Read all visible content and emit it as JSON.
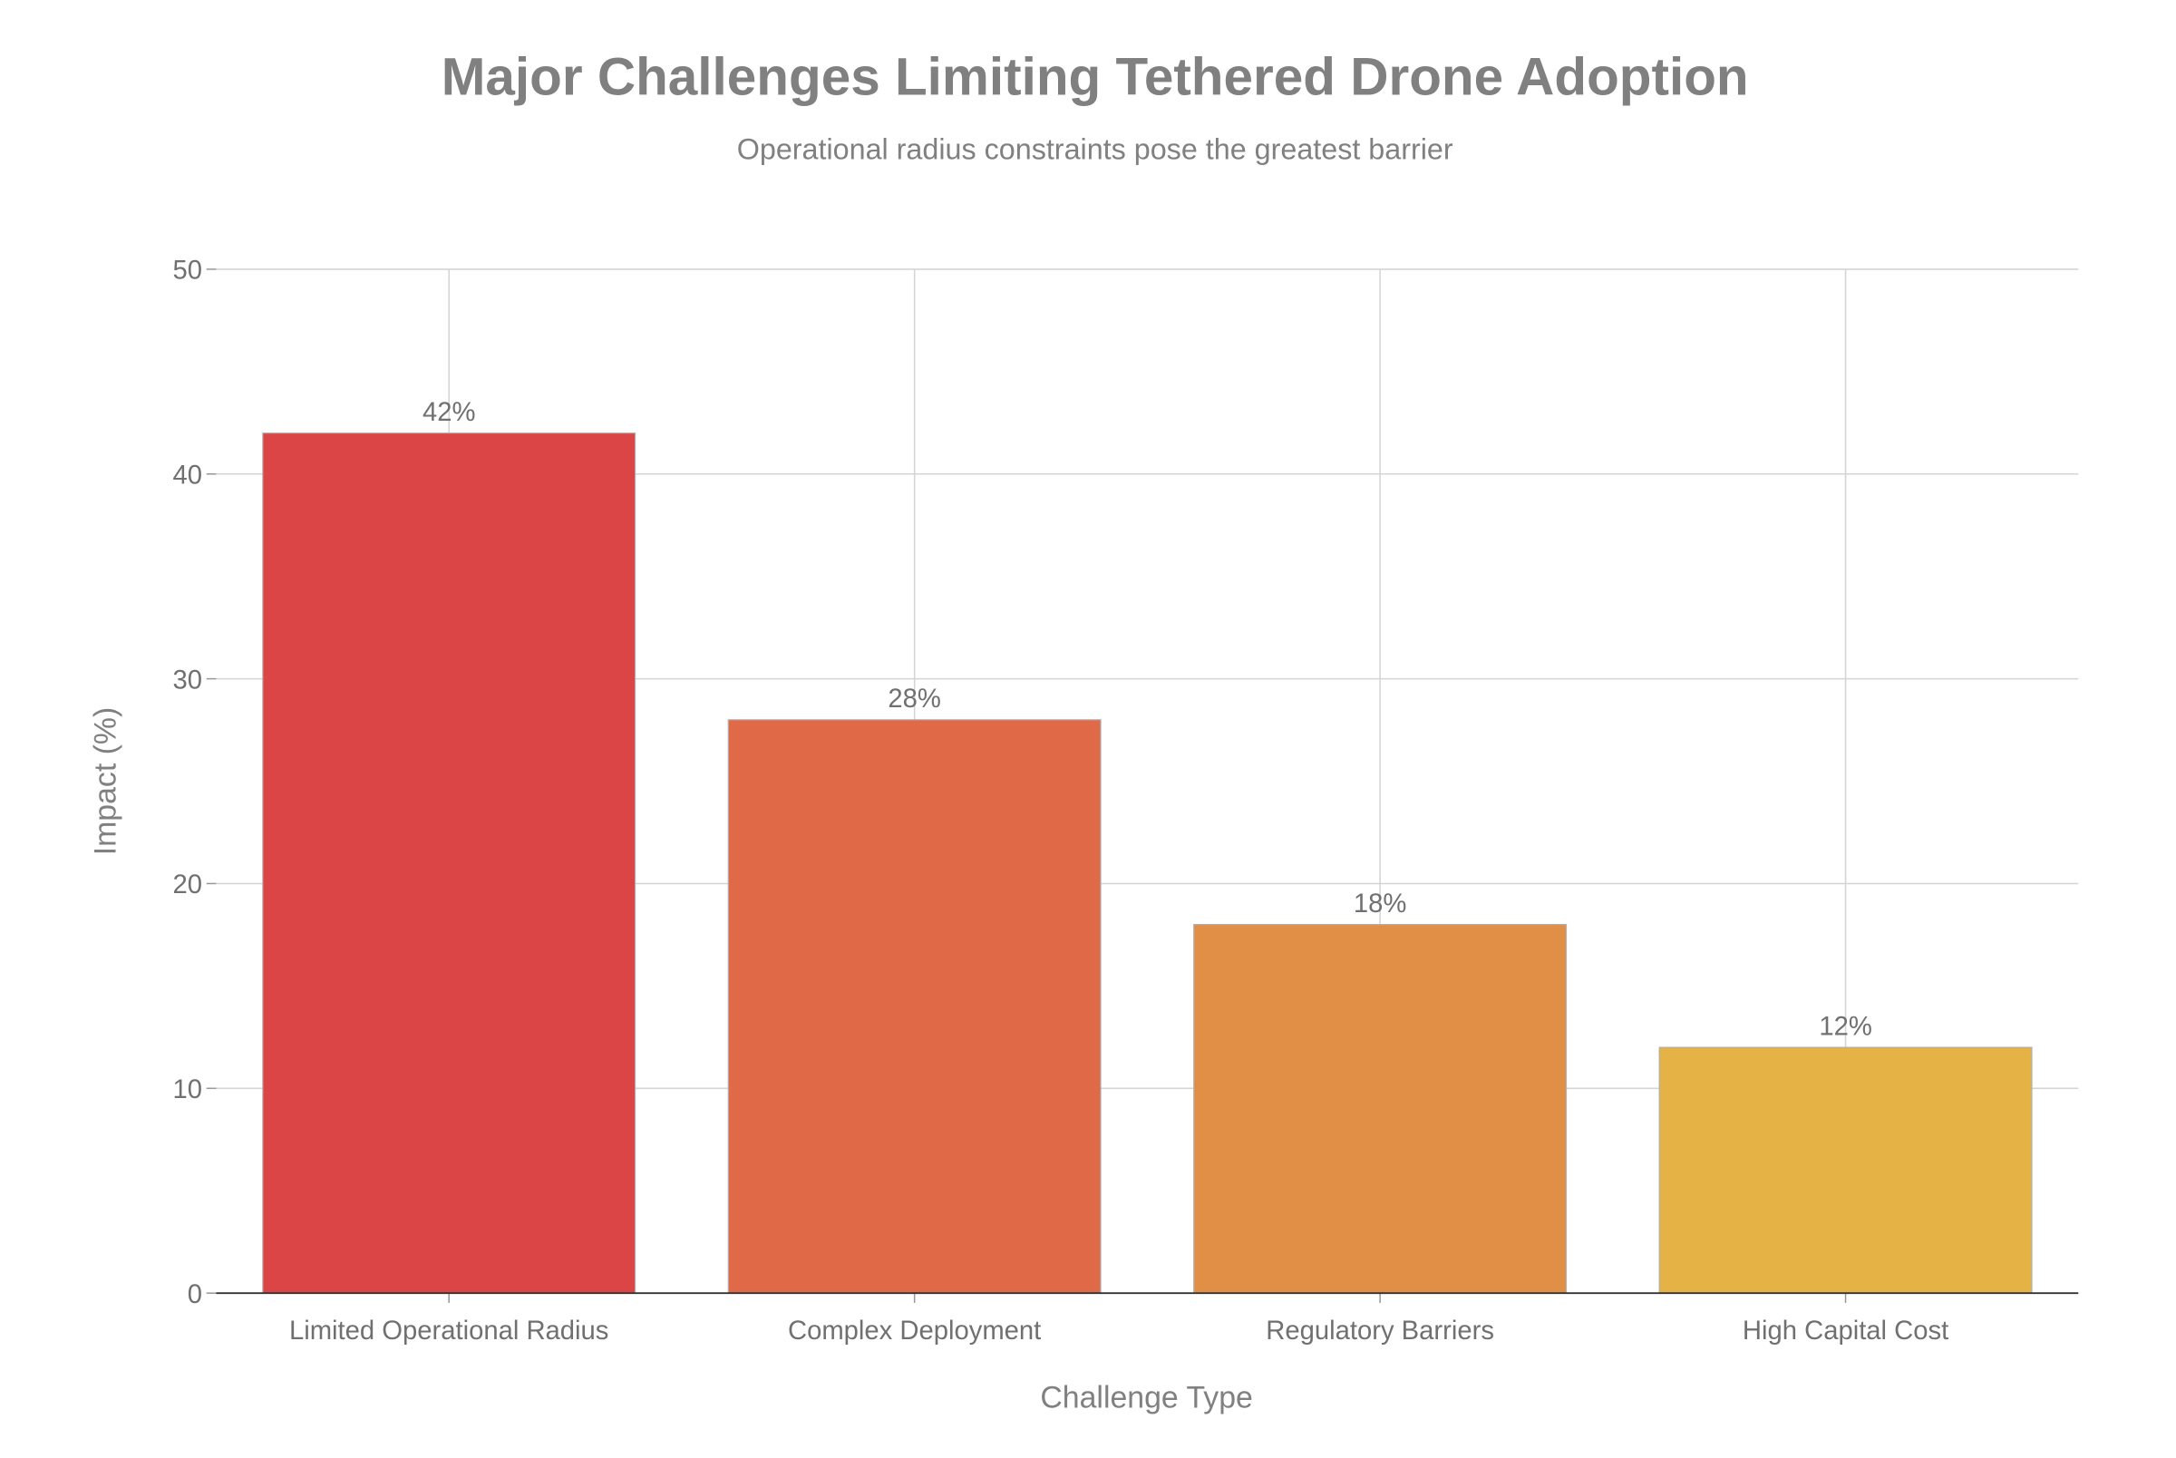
{
  "chart_data": {
    "type": "bar",
    "title": "Major Challenges Limiting Tethered Drone Adoption",
    "subtitle": "Operational radius constraints pose the greatest barrier",
    "xlabel": "Challenge Type",
    "ylabel": "Impact (%)",
    "categories": [
      "Limited Operational Radius",
      "Complex Deployment",
      "Regulatory Barriers",
      "High Capital Cost"
    ],
    "values": [
      42,
      28,
      18,
      12
    ],
    "data_labels": [
      "42%",
      "28%",
      "18%",
      "12%"
    ],
    "colors": [
      "#dc4545",
      "#e06a48",
      "#e18e47",
      "#e5b345"
    ],
    "ylim": [
      0,
      50
    ],
    "yticks": [
      0,
      10,
      20,
      30,
      40,
      50
    ],
    "grid": true
  }
}
